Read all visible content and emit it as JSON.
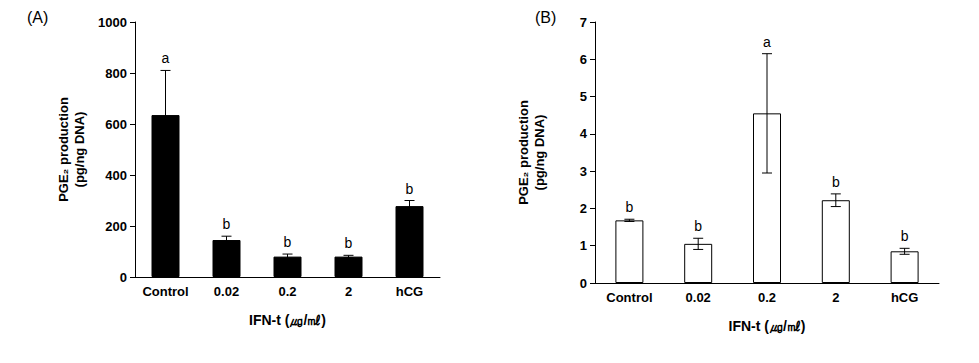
{
  "chart_data": [
    {
      "type": "bar",
      "title": "(A)",
      "x_label": "IFN-t (㎍/㎖)",
      "y_label": "PGE₂ production\n(pg/ng DNA)",
      "categories": [
        "Control",
        "0.02",
        "0.2",
        "2",
        "hCG"
      ],
      "values": [
        635,
        145,
        80,
        80,
        278
      ],
      "errors": [
        175,
        15,
        10,
        5,
        22
      ],
      "annotations": [
        "a",
        "b",
        "b",
        "b",
        "b"
      ],
      "color": "#000000",
      "ylim": [
        0,
        1000
      ],
      "yticks": [
        0,
        200,
        400,
        600,
        800,
        1000
      ],
      "grid": false
    },
    {
      "type": "bar",
      "title": "(B)",
      "x_label": "IFN-t (㎍/㎖)",
      "y_label": "PGE₂ production\n(pg/ng DNA)",
      "categories": [
        "Control",
        "0.02",
        "0.2",
        "2",
        "hCG"
      ],
      "values": [
        1.68,
        1.05,
        4.55,
        2.22,
        0.85
      ],
      "errors": [
        0.03,
        0.15,
        1.6,
        0.17,
        0.08
      ],
      "annotations": [
        "b",
        "b",
        "a",
        "b",
        "b"
      ],
      "color": "#ffffff",
      "ylim": [
        0,
        7
      ],
      "yticks": [
        0,
        1,
        2,
        3,
        4,
        5,
        6,
        7
      ],
      "grid": false
    }
  ]
}
